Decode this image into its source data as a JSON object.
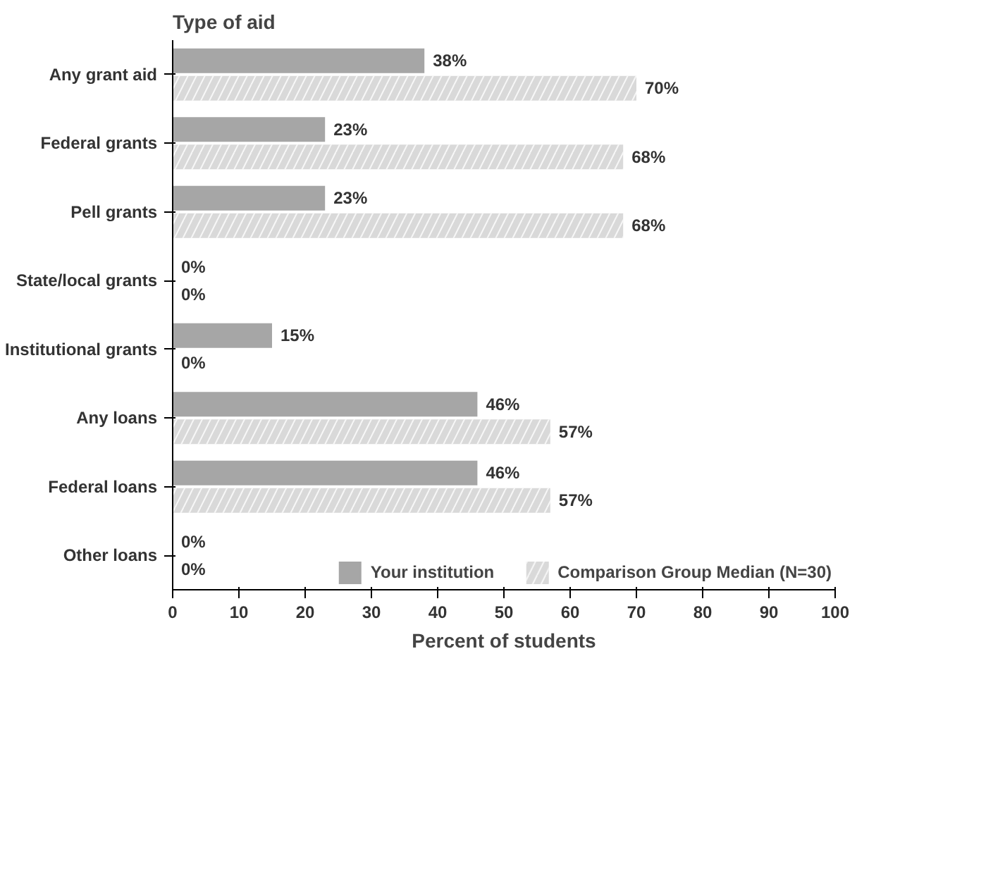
{
  "chart_data": {
    "type": "bar",
    "orientation": "horizontal",
    "ylabel": "Type of aid",
    "xlabel": "Percent of students",
    "categories": [
      "Any grant aid",
      "Federal grants",
      "Pell grants",
      "State/local grants",
      "Institutional grants",
      "Any loans",
      "Federal loans",
      "Other loans"
    ],
    "series": [
      {
        "name": "Your institution",
        "color": "#a6a6a6",
        "values": [
          38,
          23,
          23,
          0,
          15,
          46,
          46,
          0
        ],
        "value_labels": [
          "38%",
          "23%",
          "23%",
          "0%",
          "15%",
          "46%",
          "46%",
          "0%"
        ]
      },
      {
        "name": "Comparison Group Median (N=30)",
        "color": "#d9d9d9",
        "values": [
          70,
          68,
          68,
          0,
          0,
          57,
          57,
          0
        ],
        "value_labels": [
          "70%",
          "68%",
          "68%",
          "0%",
          "0%",
          "57%",
          "57%",
          "0%"
        ]
      }
    ],
    "xlim": [
      0,
      100
    ],
    "xticks": [
      0,
      10,
      20,
      30,
      40,
      50,
      60,
      70,
      80,
      90,
      100
    ],
    "grid": false,
    "legend": "bottom"
  }
}
